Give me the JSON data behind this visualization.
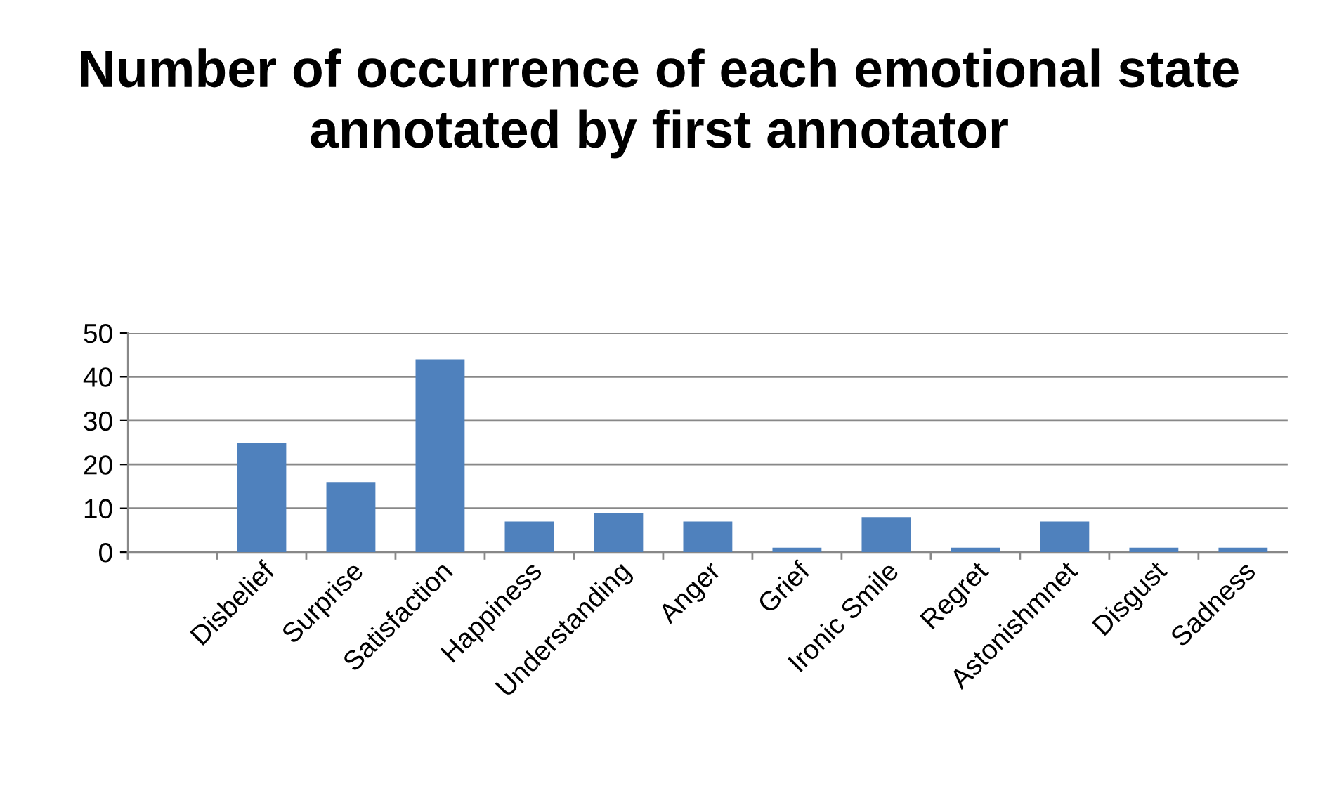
{
  "chart_data": {
    "type": "bar",
    "title": "Number of occurrence of each emotional state annotated by first annotator",
    "categories": [
      null,
      "Disbelief",
      "Surprise",
      "Satisfaction",
      "Happiness",
      "Understanding",
      "Anger",
      "Grief",
      "Ironic Smile",
      "Regret",
      "Astonishmnet",
      "Disgust",
      "Sadness"
    ],
    "values": [
      null,
      25,
      16,
      44,
      7,
      9,
      7,
      1,
      8,
      1,
      7,
      1,
      1
    ],
    "color": "#4f81bd",
    "ylim": [
      0,
      50
    ],
    "yticks": [
      0,
      10,
      20,
      30,
      40,
      50
    ],
    "grid": "y",
    "legend": false
  }
}
